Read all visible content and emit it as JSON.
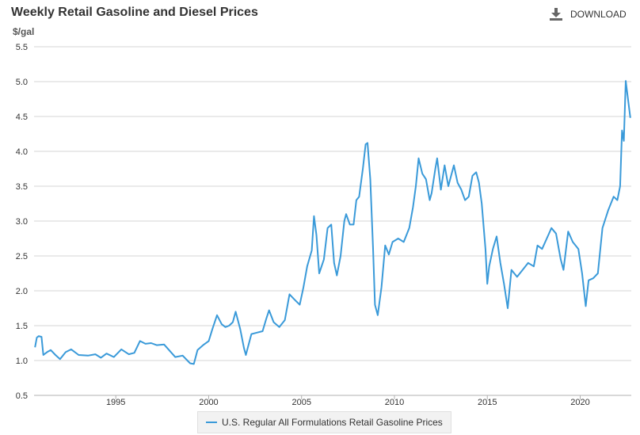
{
  "header": {
    "title": "Weekly Retail Gasoline and Diesel Prices",
    "download_label": "DOWNLOAD"
  },
  "chart_data": {
    "type": "line",
    "title": "Weekly Retail Gasoline and Diesel Prices",
    "ylabel": "$/gal",
    "xlabel": "",
    "ylim": [
      0.5,
      5.5
    ],
    "xlim": [
      1990.6,
      2022.75
    ],
    "yticks": [
      0.5,
      1.0,
      1.5,
      2.0,
      2.5,
      3.0,
      3.5,
      4.0,
      4.5,
      5.0,
      5.5
    ],
    "yticklabels": [
      "0.5",
      "1.0",
      "1.5",
      "2.0",
      "2.5",
      "3.0",
      "3.5",
      "4.0",
      "4.5",
      "5.0",
      "5.5"
    ],
    "xticks": [
      1995,
      2000,
      2005,
      2010,
      2015,
      2020
    ],
    "xticklabels": [
      "1995",
      "2000",
      "2005",
      "2010",
      "2015",
      "2020"
    ],
    "grid": true,
    "legend": "bottom-center",
    "series": [
      {
        "name": "U.S. Regular All Formulations Retail Gasoline Prices",
        "color": "#3a9ad9",
        "x": [
          1990.65,
          1990.75,
          1990.85,
          1991.0,
          1991.1,
          1991.3,
          1991.5,
          1991.75,
          1992.0,
          1992.3,
          1992.6,
          1993.0,
          1993.5,
          1993.9,
          1994.2,
          1994.5,
          1994.9,
          1995.3,
          1995.7,
          1996.0,
          1996.3,
          1996.6,
          1996.9,
          1997.2,
          1997.6,
          1997.9,
          1998.2,
          1998.6,
          1999.0,
          1999.2,
          1999.4,
          1999.7,
          2000.0,
          2000.2,
          2000.45,
          2000.7,
          2000.9,
          2001.1,
          2001.3,
          2001.45,
          2001.7,
          2001.9,
          2002.0,
          2002.3,
          2002.6,
          2002.9,
          2003.1,
          2003.25,
          2003.5,
          2003.8,
          2004.1,
          2004.35,
          2004.6,
          2004.9,
          2005.1,
          2005.3,
          2005.55,
          2005.67,
          2005.8,
          2005.95,
          2006.2,
          2006.4,
          2006.6,
          2006.75,
          2006.9,
          2007.1,
          2007.3,
          2007.4,
          2007.6,
          2007.8,
          2007.95,
          2008.1,
          2008.3,
          2008.45,
          2008.55,
          2008.7,
          2008.85,
          2008.95,
          2009.1,
          2009.3,
          2009.5,
          2009.7,
          2009.9,
          2010.2,
          2010.5,
          2010.8,
          2011.0,
          2011.15,
          2011.3,
          2011.5,
          2011.7,
          2011.9,
          2012.0,
          2012.2,
          2012.3,
          2012.5,
          2012.7,
          2012.9,
          2013.1,
          2013.2,
          2013.4,
          2013.6,
          2013.8,
          2014.0,
          2014.2,
          2014.4,
          2014.55,
          2014.7,
          2014.9,
          2015.0,
          2015.1,
          2015.3,
          2015.5,
          2015.7,
          2015.9,
          2016.1,
          2016.3,
          2016.6,
          2016.9,
          2017.2,
          2017.5,
          2017.7,
          2017.95,
          2018.2,
          2018.45,
          2018.7,
          2018.95,
          2019.1,
          2019.35,
          2019.6,
          2019.9,
          2020.1,
          2020.3,
          2020.45,
          2020.7,
          2020.95,
          2021.2,
          2021.5,
          2021.8,
          2022.0,
          2022.15,
          2022.25,
          2022.35,
          2022.45,
          2022.55,
          2022.7
        ],
        "values": [
          1.19,
          1.33,
          1.35,
          1.34,
          1.08,
          1.12,
          1.15,
          1.08,
          1.02,
          1.12,
          1.16,
          1.08,
          1.07,
          1.09,
          1.04,
          1.1,
          1.05,
          1.16,
          1.09,
          1.11,
          1.28,
          1.24,
          1.25,
          1.22,
          1.23,
          1.14,
          1.05,
          1.07,
          0.96,
          0.95,
          1.15,
          1.22,
          1.28,
          1.45,
          1.65,
          1.52,
          1.48,
          1.5,
          1.55,
          1.7,
          1.45,
          1.18,
          1.08,
          1.38,
          1.4,
          1.42,
          1.6,
          1.72,
          1.55,
          1.48,
          1.58,
          1.95,
          1.88,
          1.8,
          2.05,
          2.35,
          2.58,
          3.07,
          2.8,
          2.25,
          2.45,
          2.9,
          2.95,
          2.4,
          2.22,
          2.5,
          3.0,
          3.1,
          2.95,
          2.95,
          3.3,
          3.35,
          3.75,
          4.1,
          4.12,
          3.6,
          2.6,
          1.8,
          1.65,
          2.05,
          2.65,
          2.52,
          2.7,
          2.75,
          2.7,
          2.9,
          3.2,
          3.5,
          3.9,
          3.68,
          3.6,
          3.3,
          3.4,
          3.75,
          3.9,
          3.45,
          3.8,
          3.5,
          3.7,
          3.8,
          3.55,
          3.45,
          3.3,
          3.35,
          3.65,
          3.7,
          3.55,
          3.25,
          2.6,
          2.1,
          2.35,
          2.6,
          2.78,
          2.4,
          2.1,
          1.75,
          2.3,
          2.2,
          2.3,
          2.4,
          2.35,
          2.65,
          2.6,
          2.75,
          2.9,
          2.82,
          2.45,
          2.3,
          2.85,
          2.7,
          2.6,
          2.25,
          1.78,
          2.15,
          2.18,
          2.25,
          2.9,
          3.15,
          3.35,
          3.3,
          3.5,
          4.3,
          4.15,
          5.01,
          4.8,
          4.48
        ]
      }
    ]
  }
}
